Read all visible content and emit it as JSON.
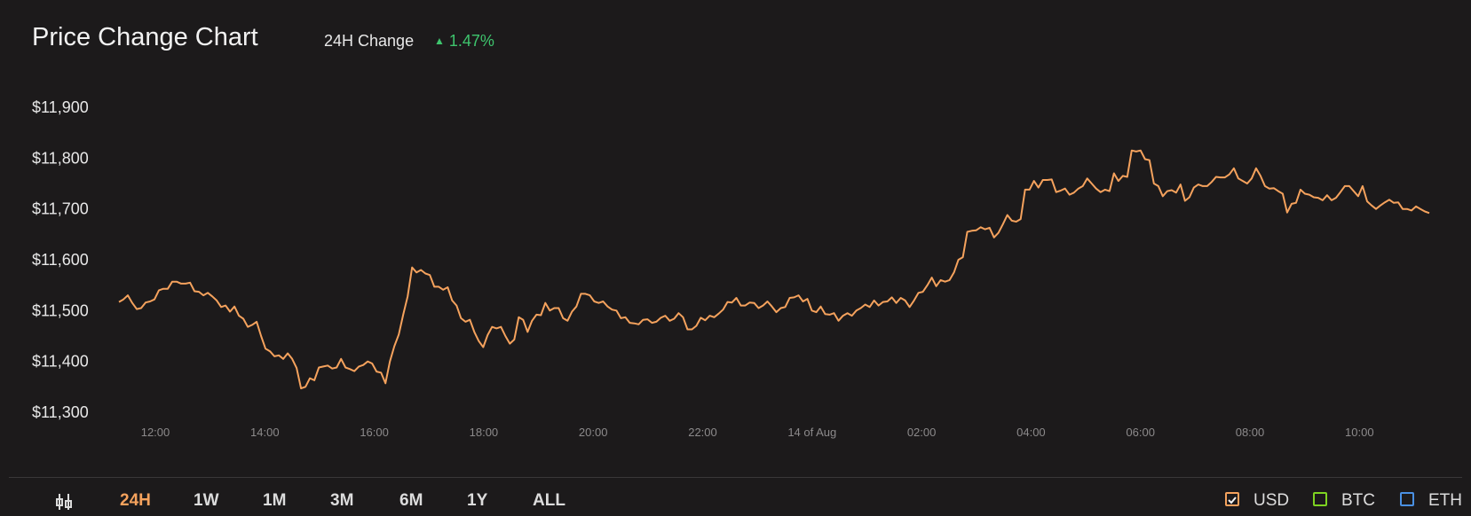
{
  "header": {
    "title": "Price Change Chart",
    "change_label": "24H Change",
    "change_value": "1.47%",
    "change_color": "#3ec46d"
  },
  "periods": [
    "24H",
    "1W",
    "1M",
    "3M",
    "6M",
    "1Y",
    "ALL"
  ],
  "active_period": "24H",
  "currencies": [
    {
      "label": "USD",
      "color": "#f5a25d",
      "checked": true
    },
    {
      "label": "BTC",
      "color": "#7ed321",
      "checked": false
    },
    {
      "label": "ETH",
      "color": "#4a90e2",
      "checked": false
    }
  ],
  "chart_data": {
    "type": "line",
    "title": "Price Change Chart",
    "xlabel": "",
    "ylabel": "",
    "ylim": [
      11300,
      11900
    ],
    "yticks": [
      11900,
      11800,
      11700,
      11600,
      11500,
      11400,
      11300
    ],
    "ytick_labels": [
      "$11,900",
      "$11,800",
      "$11,700",
      "$11,600",
      "$11,500",
      "$11,400",
      "$11,300"
    ],
    "xticks": [
      "12:00",
      "14:00",
      "16:00",
      "18:00",
      "20:00",
      "22:00",
      "14 of Aug",
      "02:00",
      "04:00",
      "06:00",
      "08:00",
      "10:00"
    ],
    "xlim": [
      "11:30",
      "11:30 (+1 day)"
    ],
    "grid": false,
    "line_color": "#f5a25d",
    "series": [
      {
        "values": [
          11517,
          11522,
          11530,
          11515,
          11503,
          11505,
          11516,
          11518,
          11522,
          11540,
          11543,
          11543,
          11557,
          11557,
          11553,
          11553,
          11555,
          11538,
          11537,
          11530,
          11535,
          11528,
          11520,
          11507,
          11510,
          11498,
          11508,
          11490,
          11484,
          11468,
          11472,
          11478,
          11450,
          11425,
          11420,
          11410,
          11412,
          11405,
          11416,
          11405,
          11387,
          11347,
          11350,
          11367,
          11363,
          11388,
          11390,
          11392,
          11386,
          11388,
          11405,
          11388,
          11385,
          11381,
          11390,
          11393,
          11400,
          11396,
          11380,
          11378,
          11357,
          11400,
          11430,
          11453,
          11492,
          11528,
          11585,
          11575,
          11580,
          11573,
          11570,
          11547,
          11547,
          11541,
          11546,
          11520,
          11510,
          11485,
          11478,
          11482,
          11458,
          11440,
          11428,
          11452,
          11468,
          11465,
          11468,
          11450,
          11435,
          11443,
          11487,
          11482,
          11458,
          11480,
          11492,
          11491,
          11515,
          11500,
          11505,
          11505,
          11485,
          11480,
          11498,
          11508,
          11533,
          11533,
          11530,
          11518,
          11515,
          11518,
          11508,
          11502,
          11500,
          11485,
          11487,
          11476,
          11475,
          11473,
          11482,
          11483,
          11476,
          11478,
          11486,
          11490,
          11480,
          11484,
          11495,
          11487,
          11463,
          11463,
          11470,
          11486,
          11481,
          11490,
          11487,
          11494,
          11502,
          11517,
          11516,
          11525,
          11510,
          11510,
          11516,
          11515,
          11505,
          11510,
          11518,
          11508,
          11497,
          11505,
          11507,
          11525,
          11526,
          11530,
          11518,
          11523,
          11500,
          11497,
          11508,
          11493,
          11492,
          11495,
          11480,
          11490,
          11495,
          11490,
          11500,
          11505,
          11512,
          11507,
          11520,
          11510,
          11517,
          11518,
          11526,
          11515,
          11525,
          11520,
          11507,
          11520,
          11535,
          11537,
          11550,
          11565,
          11548,
          11560,
          11557,
          11560,
          11575,
          11600,
          11605,
          11655,
          11657,
          11658,
          11664,
          11660,
          11663,
          11644,
          11653,
          11670,
          11688,
          11677,
          11675,
          11680,
          11738,
          11738,
          11755,
          11742,
          11757,
          11757,
          11758,
          11733,
          11736,
          11740,
          11728,
          11732,
          11740,
          11745,
          11760,
          11750,
          11740,
          11733,
          11738,
          11735,
          11770,
          11755,
          11765,
          11763,
          11815,
          11813,
          11815,
          11798,
          11796,
          11750,
          11745,
          11725,
          11735,
          11737,
          11732,
          11748,
          11716,
          11723,
          11742,
          11748,
          11745,
          11745,
          11753,
          11763,
          11762,
          11762,
          11768,
          11780,
          11760,
          11755,
          11750,
          11760,
          11780,
          11765,
          11745,
          11740,
          11741,
          11735,
          11730,
          11693,
          11710,
          11712,
          11738,
          11730,
          11728,
          11723,
          11722,
          11717,
          11727,
          11717,
          11722,
          11733,
          11745,
          11745,
          11735,
          11725,
          11745,
          11715,
          11707,
          11700,
          11707,
          11713,
          11718,
          11712,
          11713,
          11700,
          11700,
          11697,
          11705,
          11700,
          11695,
          11692
        ]
      }
    ]
  }
}
